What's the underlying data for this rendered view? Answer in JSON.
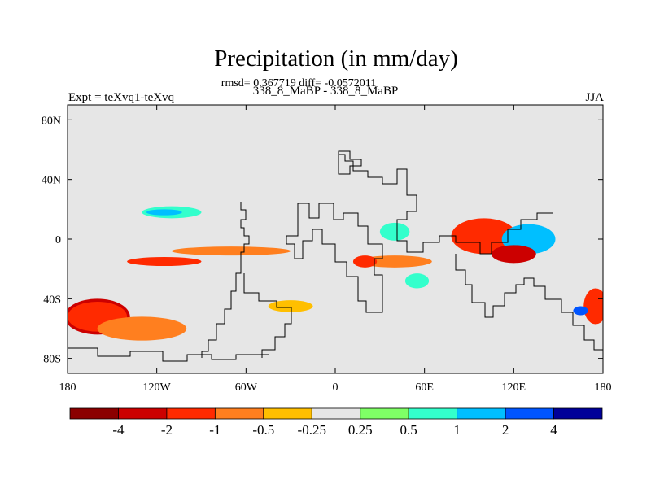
{
  "title": "Precipitation (in mm/day)",
  "stats": "rmsd= 0.367719 diff= -0.0572011",
  "subtitle": "338_8_MaBP - 338_8_MaBP",
  "experiment": "Expt = teXvq1-teXvq",
  "season": "JJA",
  "colors": {
    "background_field": "#e6e6e6",
    "coastline": "#000000"
  },
  "chart_data": {
    "type": "heatmap",
    "projection": "cylindrical-equidistant",
    "xlim": [
      -180,
      180
    ],
    "ylim": [
      -90,
      90
    ],
    "x_ticks": [
      {
        "value": -180,
        "label": "180"
      },
      {
        "value": -120,
        "label": "120W"
      },
      {
        "value": -60,
        "label": "60W"
      },
      {
        "value": 0,
        "label": "0"
      },
      {
        "value": 60,
        "label": "60E"
      },
      {
        "value": 120,
        "label": "120E"
      },
      {
        "value": 180,
        "label": "180"
      }
    ],
    "y_ticks": [
      {
        "value": 80,
        "label": "80N"
      },
      {
        "value": 40,
        "label": "40N"
      },
      {
        "value": 0,
        "label": "0"
      },
      {
        "value": -40,
        "label": "40S"
      },
      {
        "value": -80,
        "label": "80S"
      }
    ],
    "colorbar": {
      "colors": [
        "#8b0000",
        "#cc0000",
        "#ff2a00",
        "#ff7f1f",
        "#ffbf00",
        "#e6e6e6",
        "#7fff66",
        "#33ffcc",
        "#00bfff",
        "#0055ff",
        "#000099"
      ],
      "labels": [
        "-4",
        "-2",
        "-1",
        "-0.5",
        "-0.25",
        "0.25",
        "0.5",
        "1",
        "2",
        "4"
      ]
    },
    "anomalies": [
      {
        "lon": -160,
        "lat": -52,
        "rx": 22,
        "ry": 12,
        "level": -4
      },
      {
        "lon": -160,
        "lat": -52,
        "rx": 20,
        "ry": 10,
        "level": -2
      },
      {
        "lon": -130,
        "lat": -60,
        "rx": 30,
        "ry": 8,
        "level": -1
      },
      {
        "lon": -115,
        "lat": -15,
        "rx": 25,
        "ry": 3,
        "level": -2
      },
      {
        "lon": -70,
        "lat": -8,
        "rx": 40,
        "ry": 3,
        "level": -1
      },
      {
        "lon": 100,
        "lat": 2,
        "rx": 22,
        "ry": 12,
        "level": -2
      },
      {
        "lon": 130,
        "lat": 0,
        "rx": 18,
        "ry": 10,
        "level": 1
      },
      {
        "lon": 120,
        "lat": -10,
        "rx": 15,
        "ry": 6,
        "level": -4
      },
      {
        "lon": 175,
        "lat": -45,
        "rx": 8,
        "ry": 12,
        "level": -2
      },
      {
        "lon": 165,
        "lat": -48,
        "rx": 5,
        "ry": 3,
        "level": 2
      },
      {
        "lon": 40,
        "lat": -15,
        "rx": 25,
        "ry": 4,
        "level": -1
      },
      {
        "lon": 20,
        "lat": -15,
        "rx": 8,
        "ry": 4,
        "level": -2
      },
      {
        "lon": -110,
        "lat": 18,
        "rx": 20,
        "ry": 4,
        "level": 0.5
      },
      {
        "lon": -115,
        "lat": 18,
        "rx": 12,
        "ry": 2,
        "level": 1
      },
      {
        "lon": 40,
        "lat": 5,
        "rx": 10,
        "ry": 6,
        "level": 0.5
      },
      {
        "lon": 55,
        "lat": -28,
        "rx": 8,
        "ry": 5,
        "level": 0.5
      },
      {
        "lon": -30,
        "lat": -45,
        "rx": 15,
        "ry": 4,
        "level": -0.5
      }
    ]
  }
}
